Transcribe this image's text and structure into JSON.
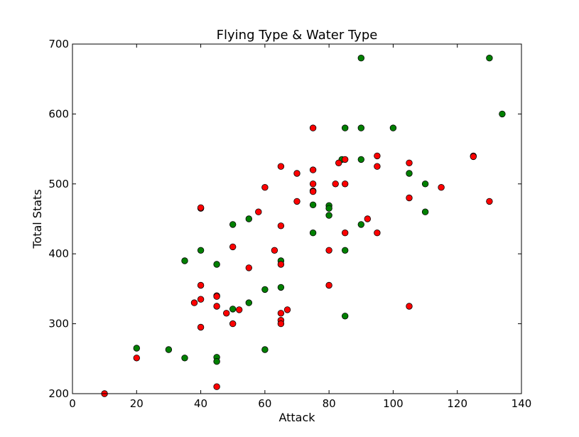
{
  "chart_data": {
    "type": "scatter",
    "title": "Flying Type & Water Type",
    "xlabel": "Attack",
    "ylabel": "Total Stats",
    "xlim": [
      0,
      140
    ],
    "ylim": [
      200,
      700
    ],
    "x_ticks": [
      "0",
      "20",
      "40",
      "60",
      "80",
      "100",
      "120",
      "140"
    ],
    "y_ticks": [
      "200",
      "300",
      "400",
      "500",
      "600",
      "700"
    ],
    "grid": false,
    "legend": "none",
    "series": [
      {
        "color": "#008000",
        "points": [
          [
            20,
            265
          ],
          [
            30,
            263
          ],
          [
            35,
            251
          ],
          [
            35,
            390
          ],
          [
            40,
            405
          ],
          [
            45,
            385
          ],
          [
            45,
            252
          ],
          [
            45,
            246
          ],
          [
            50,
            442
          ],
          [
            50,
            321
          ],
          [
            55,
            450
          ],
          [
            55,
            330
          ],
          [
            60,
            349
          ],
          [
            60,
            263
          ],
          [
            65,
            390
          ],
          [
            65,
            352
          ],
          [
            75,
            470
          ],
          [
            75,
            430
          ],
          [
            80,
            469
          ],
          [
            80,
            465
          ],
          [
            80,
            455
          ],
          [
            84,
            535
          ],
          [
            85,
            580
          ],
          [
            85,
            405
          ],
          [
            85,
            311
          ],
          [
            90,
            680
          ],
          [
            90,
            580
          ],
          [
            90,
            535
          ],
          [
            90,
            442
          ],
          [
            100,
            580
          ],
          [
            105,
            515
          ],
          [
            110,
            500
          ],
          [
            110,
            460
          ],
          [
            130,
            680
          ],
          [
            134,
            600
          ]
        ]
      },
      {
        "color": "#ff0000",
        "points": [
          [
            10,
            200
          ],
          [
            20,
            251
          ],
          [
            38,
            330
          ],
          [
            40,
            465
          ],
          [
            40,
            466
          ],
          [
            40,
            355
          ],
          [
            40,
            335
          ],
          [
            40,
            295
          ],
          [
            45,
            340
          ],
          [
            45,
            339
          ],
          [
            45,
            325
          ],
          [
            45,
            210
          ],
          [
            48,
            315
          ],
          [
            50,
            410
          ],
          [
            50,
            300
          ],
          [
            52,
            320
          ],
          [
            55,
            380
          ],
          [
            58,
            460
          ],
          [
            60,
            495
          ],
          [
            63,
            405
          ],
          [
            65,
            525
          ],
          [
            65,
            440
          ],
          [
            65,
            385
          ],
          [
            65,
            315
          ],
          [
            65,
            305
          ],
          [
            65,
            300
          ],
          [
            67,
            320
          ],
          [
            70,
            515
          ],
          [
            70,
            475
          ],
          [
            75,
            580
          ],
          [
            75,
            520
          ],
          [
            75,
            500
          ],
          [
            75,
            490
          ],
          [
            75,
            489
          ],
          [
            80,
            405
          ],
          [
            80,
            355
          ],
          [
            82,
            500
          ],
          [
            83,
            530
          ],
          [
            85,
            535
          ],
          [
            85,
            500
          ],
          [
            85,
            430
          ],
          [
            92,
            450
          ],
          [
            95,
            540
          ],
          [
            95,
            525
          ],
          [
            95,
            430
          ],
          [
            105,
            530
          ],
          [
            105,
            480
          ],
          [
            105,
            325
          ],
          [
            115,
            495
          ],
          [
            125,
            540
          ],
          [
            125,
            539
          ],
          [
            130,
            475
          ]
        ]
      }
    ]
  }
}
